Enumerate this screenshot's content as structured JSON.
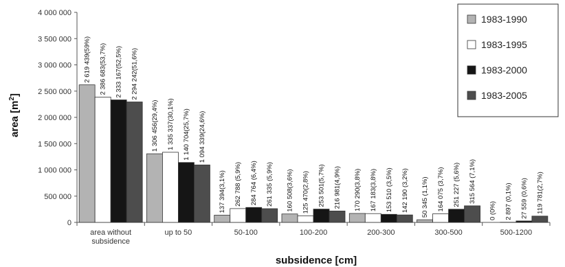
{
  "chart_data": {
    "type": "bar",
    "title": "",
    "xlabel": "subsidence [cm]",
    "ylabel_main": "area [m",
    "ylabel_sup": "2",
    "ylabel_close": "]",
    "ylim": [
      0,
      4000000
    ],
    "yticks": [
      {
        "value": 0,
        "label": "0"
      },
      {
        "value": 500000,
        "label": "500 000"
      },
      {
        "value": 1000000,
        "label": "1 000 000"
      },
      {
        "value": 1500000,
        "label": "1 500 000"
      },
      {
        "value": 2000000,
        "label": "2 000 000"
      },
      {
        "value": 2500000,
        "label": "2 500 000"
      },
      {
        "value": 3000000,
        "label": "3 000 000"
      },
      {
        "value": 3500000,
        "label": "3 500 000"
      },
      {
        "value": 4000000,
        "label": "4 000 000"
      }
    ],
    "categories": [
      [
        "area without",
        "subsidence"
      ],
      [
        "up to 50"
      ],
      [
        "50-100"
      ],
      [
        "100-200"
      ],
      [
        "200-300"
      ],
      [
        "300-500"
      ],
      [
        "500-1200"
      ]
    ],
    "legend_position": "top-right",
    "series": [
      {
        "name": "1983-1990",
        "color": "#b3b3b3",
        "values": [
          2619439,
          1306456,
          137394,
          160508,
          170290,
          50345,
          0
        ],
        "labels": [
          "2 619 439(59%)",
          "1 306 456(29,4%)",
          "137 394(3,1%)",
          "160 508(3,6%)",
          "170 290(3,8%)",
          "50 345 (1,1%)",
          "0 (0%)"
        ]
      },
      {
        "name": "1983-1995",
        "color": "#ffffff",
        "values": [
          2386683,
          1335337,
          262788,
          125470,
          167183,
          164075,
          2897
        ],
        "labels": [
          "2 386 683(53,7%)",
          "1 335 337(30,1%)",
          "262 788 (5,9%)",
          "125 470(2,8%)",
          "167 183(3,8%)",
          "164 075 (3,7%)",
          "2 897 (0,1%)"
        ]
      },
      {
        "name": "1983-2000",
        "color": "#151515",
        "values": [
          2333167,
          1140704,
          284764,
          253501,
          153510,
          251227,
          27559
        ],
        "labels": [
          "2 333 167(52,5%)",
          "1 140 704(25,7%)",
          "284 764 (6,4%)",
          "253 501(5,7%)",
          "153 510 (3,5%)",
          "251 227 (5,6%)",
          "27 559 (0,6%)"
        ]
      },
      {
        "name": "1983-2005",
        "color": "#4d4d4d",
        "values": [
          2294242,
          1094339,
          261335,
          216981,
          142190,
          315564,
          119781
        ],
        "labels": [
          "2 294 242(51,6%)",
          "1 094 339(24,6%)",
          "261 335 (5,9%)",
          "216 981(4,9%)",
          "142 190 (3,2%)",
          "315 564 (7,1%)",
          "119 781(2,7%)"
        ]
      }
    ]
  }
}
